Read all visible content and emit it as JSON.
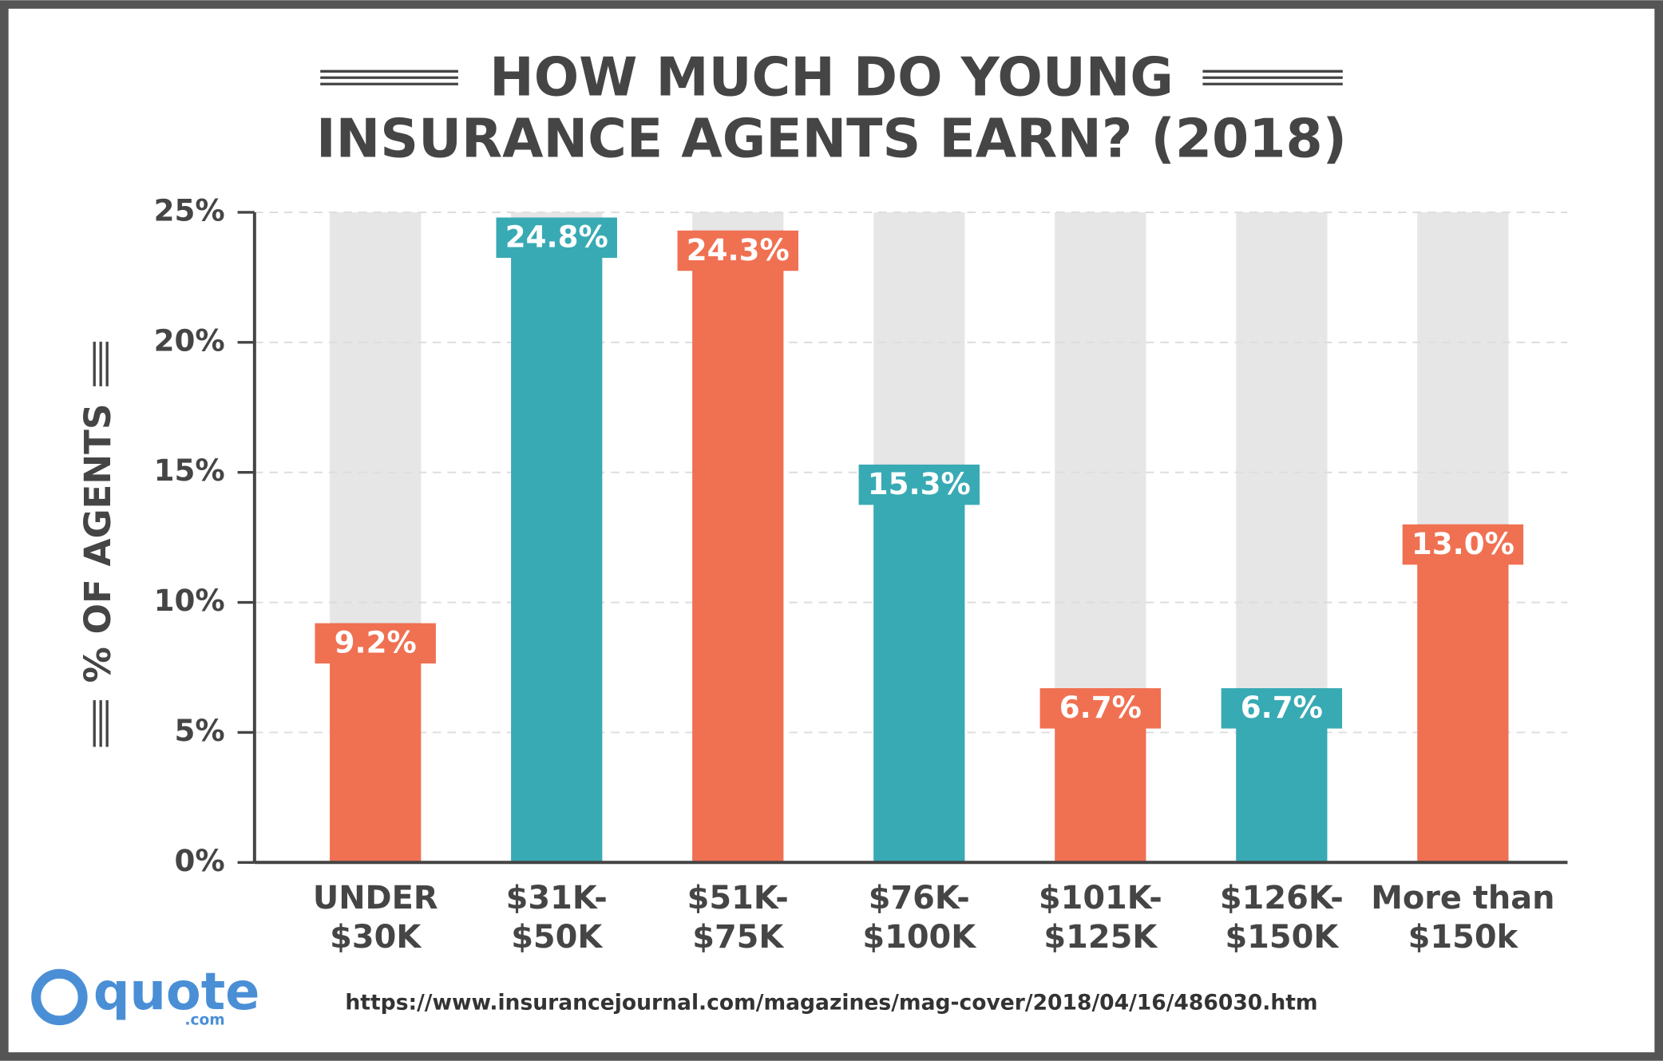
{
  "chart_data": {
    "type": "bar",
    "title": [
      "HOW MUCH DO YOUNG",
      "INSURANCE AGENTS EARN? (2018)"
    ],
    "y_label": "% OF AGENTS",
    "categories": [
      "UNDER\n$30K",
      "$31K-\n$50K",
      "$51K-\n$75K",
      "$76K-\n$100K",
      "$101K-\n$125K",
      "$126K-\n$150K",
      "More than\n$150k"
    ],
    "values": [
      9.2,
      24.8,
      24.3,
      15.3,
      6.7,
      6.7,
      13.0
    ],
    "value_labels": [
      "9.2%",
      "24.8%",
      "24.3%",
      "15.3%",
      "6.7%",
      "6.7%",
      "13.0%"
    ],
    "colors": [
      "#f07052",
      "#38aab4",
      "#f07052",
      "#38aab4",
      "#f07052",
      "#38aab4",
      "#f07052"
    ],
    "ylim": [
      0,
      25
    ],
    "yticks": [
      {
        "value": 0,
        "label": "0%"
      },
      {
        "value": 5,
        "label": "5%"
      },
      {
        "value": 10,
        "label": "10%"
      },
      {
        "value": 15,
        "label": "15%"
      },
      {
        "value": 20,
        "label": "20%"
      },
      {
        "value": 25,
        "label": "25%"
      }
    ],
    "grid": true,
    "source": "https://www.insurancejournal.com/magazines/mag-cover/2018/04/16/486030.htm",
    "logo": "quote",
    "logo_suffix": ".com"
  }
}
